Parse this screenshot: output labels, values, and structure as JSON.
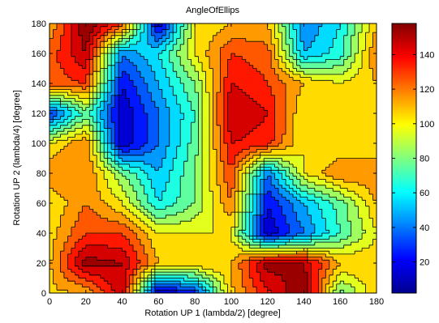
{
  "chart_data": {
    "type": "heatmap",
    "subtype": "filled-contour",
    "title": "AngleOfEllips",
    "xlabel": "Rotation UP 1 (lambda/2) [degree]",
    "ylabel": "Rotation UP 2 (lambda/4) [degree]",
    "xlim": [
      0,
      180
    ],
    "ylim": [
      0,
      180
    ],
    "x_ticks": [
      0,
      20,
      40,
      60,
      80,
      100,
      120,
      140,
      160,
      180
    ],
    "y_ticks": [
      0,
      20,
      40,
      60,
      80,
      100,
      120,
      140,
      160,
      180
    ],
    "grid": false,
    "colormap": "jet",
    "colorbar": {
      "range": [
        2,
        158
      ],
      "ticks": [
        20,
        40,
        60,
        80,
        100,
        120,
        140
      ]
    },
    "contour_levels": [
      10,
      20,
      30,
      40,
      50,
      60,
      70,
      80,
      90,
      100,
      110,
      120,
      130,
      140,
      150
    ],
    "x": [
      0,
      20,
      40,
      60,
      80,
      100,
      120,
      140,
      160,
      180
    ],
    "y": [
      0,
      20,
      40,
      60,
      80,
      100,
      120,
      140,
      160,
      180
    ],
    "z": [
      [
        108,
        110,
        148,
        5,
        25,
        108,
        138,
        160,
        75,
        108
      ],
      [
        108,
        155,
        150,
        110,
        110,
        110,
        155,
        150,
        110,
        108
      ],
      [
        105,
        130,
        130,
        100,
        100,
        100,
        10,
        40,
        70,
        100
      ],
      [
        100,
        120,
        100,
        60,
        80,
        120,
        20,
        50,
        75,
        110
      ],
      [
        120,
        120,
        80,
        50,
        80,
        130,
        40,
        100,
        120,
        120
      ],
      [
        100,
        120,
        10,
        40,
        75,
        140,
        135,
        100,
        100,
        100
      ],
      [
        25,
        75,
        10,
        40,
        70,
        150,
        140,
        100,
        100,
        100
      ],
      [
        125,
        130,
        20,
        50,
        80,
        140,
        130,
        110,
        100,
        110
      ],
      [
        125,
        150,
        40,
        60,
        100,
        130,
        125,
        50,
        65,
        120
      ],
      [
        110,
        160,
        130,
        10,
        100,
        110,
        110,
        40,
        60,
        110
      ]
    ]
  }
}
